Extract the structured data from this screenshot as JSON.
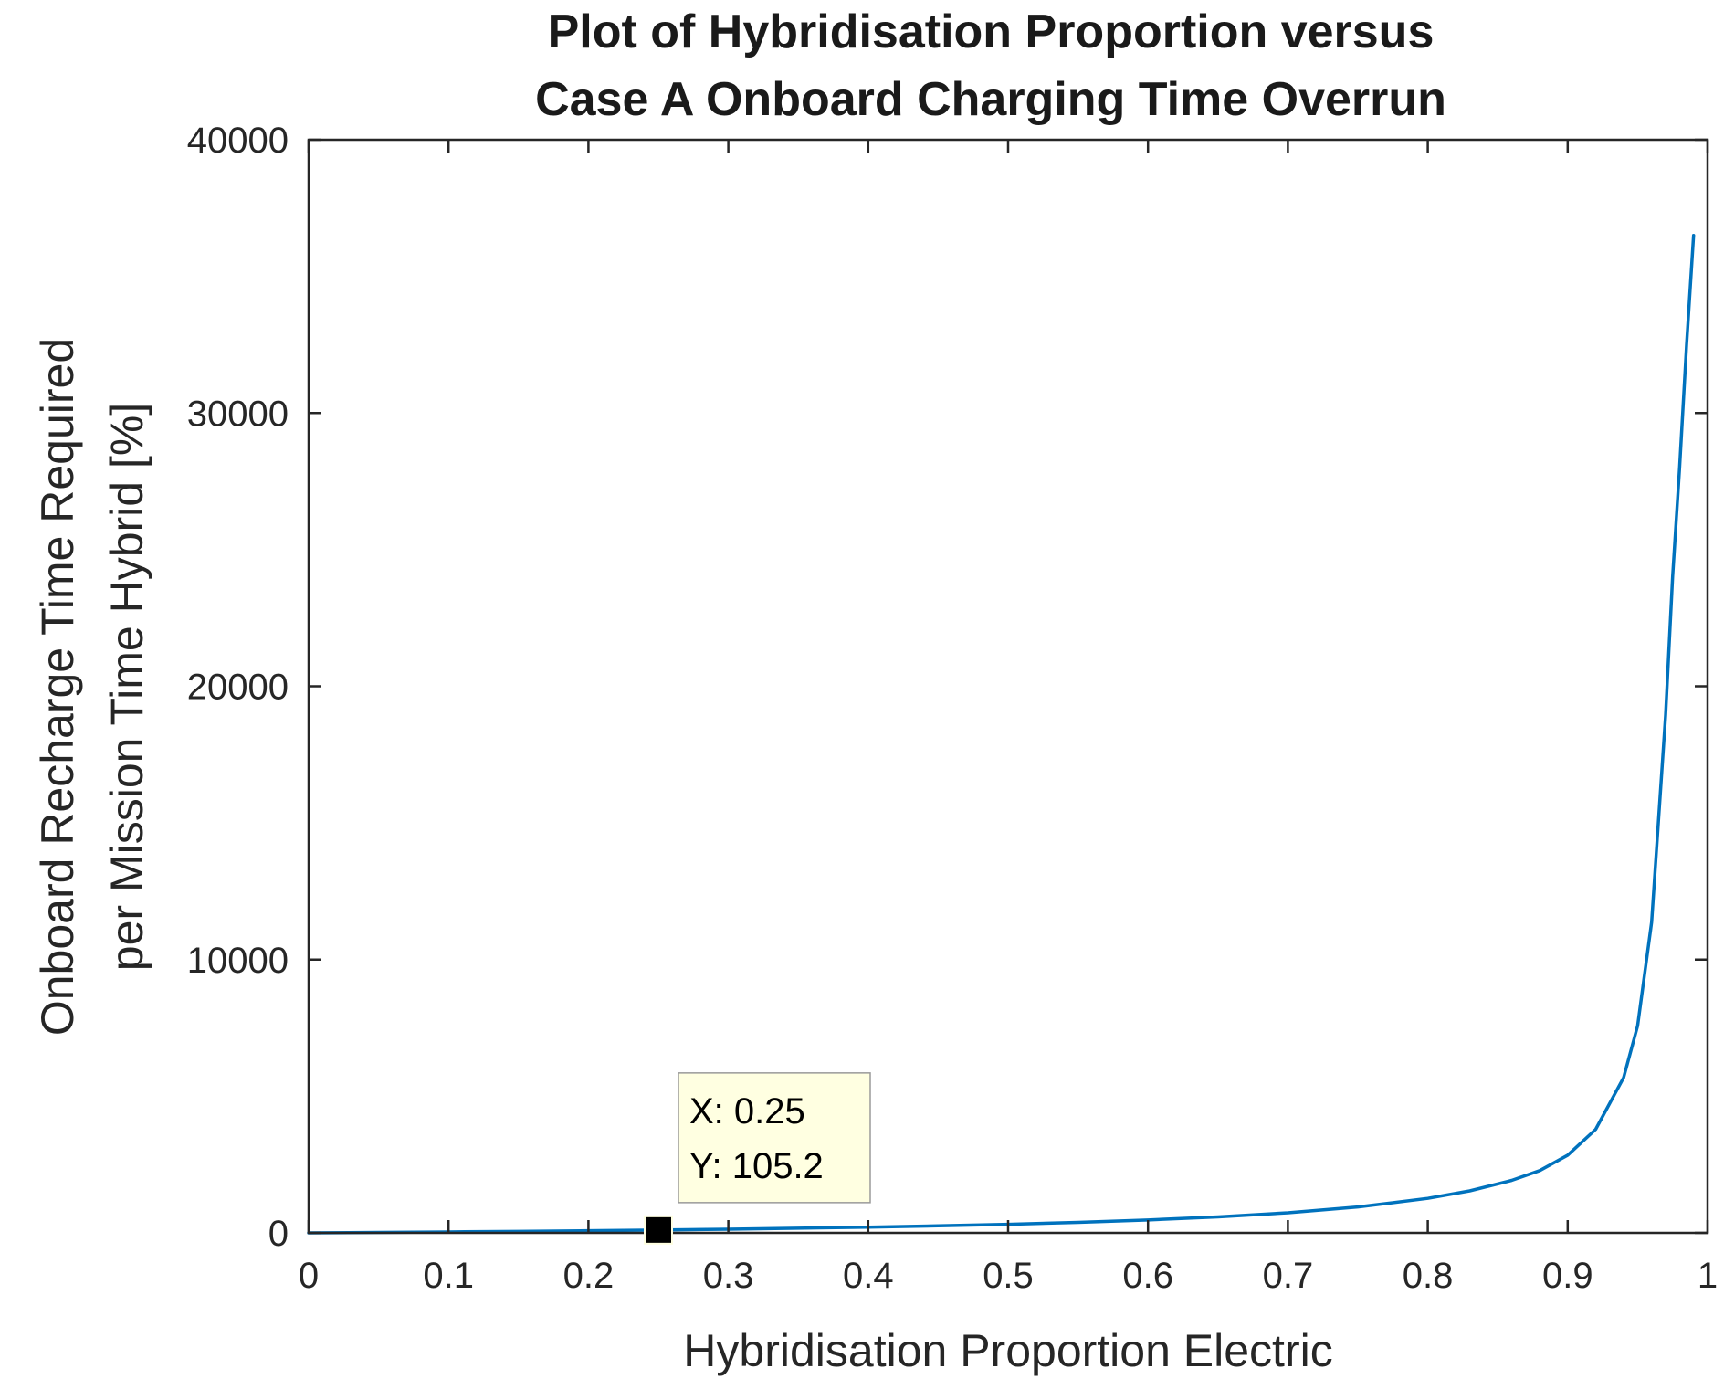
{
  "figure": {
    "title_line1": "Plot of Hybridisation Proportion versus",
    "title_line2": "Case A Onboard Charging Time Overrun"
  },
  "chart_data": {
    "type": "line",
    "title": "Plot of Hybridisation Proportion versus Case A Onboard Charging Time Overrun",
    "xlabel": "Hybridisation Proportion Electric",
    "ylabel_line1": "Onboard Recharge Time Required",
    "ylabel_line2": "per Mission Time Hybrid [%]",
    "xlim": [
      0,
      1
    ],
    "ylim": [
      0,
      40000
    ],
    "x_ticks": [
      "0",
      "0.1",
      "0.2",
      "0.3",
      "0.4",
      "0.5",
      "0.6",
      "0.7",
      "0.8",
      "0.9",
      "1"
    ],
    "y_ticks": [
      "0",
      "10000",
      "20000",
      "30000",
      "40000"
    ],
    "grid": false,
    "series": [
      {
        "color": "#0072bd",
        "x": [
          0,
          0.05,
          0.1,
          0.15,
          0.2,
          0.25,
          0.3,
          0.35,
          0.4,
          0.45,
          0.5,
          0.55,
          0.6,
          0.65,
          0.7,
          0.75,
          0.8,
          0.83,
          0.86,
          0.88,
          0.9,
          0.92,
          0.94,
          0.95,
          0.96,
          0.97,
          0.975,
          0.98,
          0.985,
          0.99
        ],
        "y": [
          0,
          17,
          35,
          56,
          79,
          105,
          135,
          170,
          210,
          257,
          315,
          385,
          473,
          585,
          736,
          947,
          1263,
          1537,
          1921,
          2278,
          2842,
          3789,
          5684,
          7579,
          11368,
          18947,
          24000,
          28000,
          32500,
          36500
        ]
      }
    ],
    "datatip": {
      "x": 0.25,
      "y": 105.2,
      "x_text": "X: 0.25",
      "y_text": "Y: 105.2"
    }
  }
}
